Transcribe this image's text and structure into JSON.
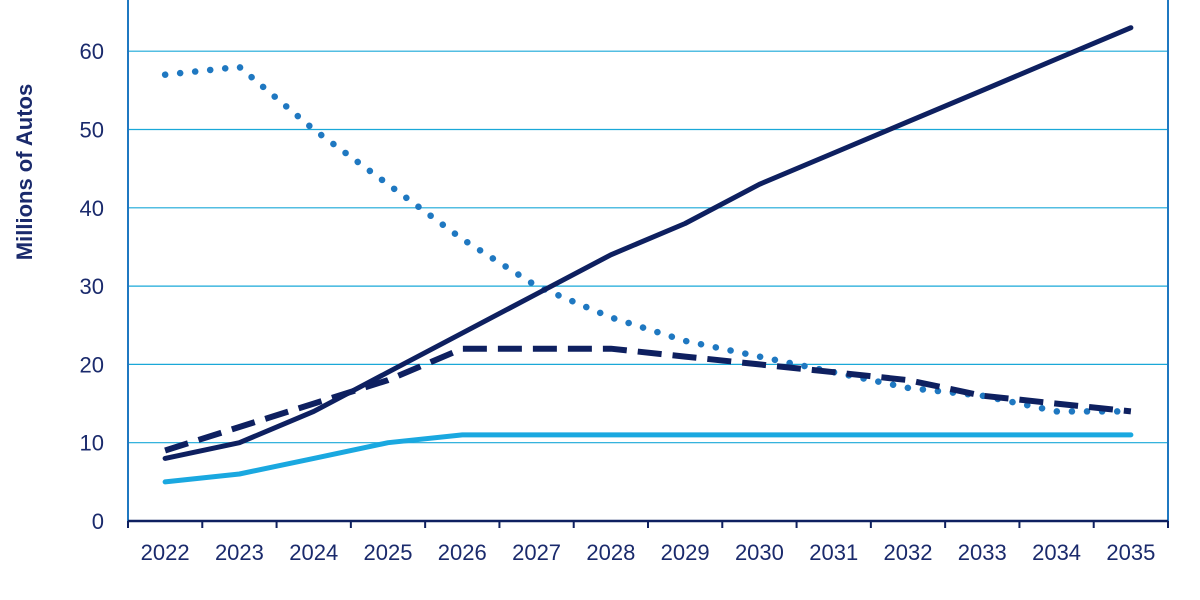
{
  "chart_data": {
    "type": "line",
    "title": "",
    "xlabel": "",
    "ylabel": "Millions of Autos",
    "ylim": [
      0,
      67
    ],
    "yticks": [
      0,
      10,
      20,
      30,
      40,
      50,
      60
    ],
    "grid": true,
    "categories": [
      "2022",
      "2023",
      "2024",
      "2025",
      "2026",
      "2027",
      "2028",
      "2029",
      "2030",
      "2031",
      "2032",
      "2033",
      "2034",
      "2035"
    ],
    "series": [
      {
        "name": "dotted-series",
        "style": "dotted",
        "color": "#1f78c1",
        "values": [
          57,
          58,
          50,
          43,
          36,
          30,
          26,
          23,
          21,
          19,
          17,
          16,
          14,
          14
        ]
      },
      {
        "name": "solid-navy-series",
        "style": "solid",
        "color": "#0e2060",
        "values": [
          8,
          10,
          14,
          19,
          24,
          29,
          34,
          38,
          43,
          47,
          51,
          55,
          59,
          63
        ]
      },
      {
        "name": "dashed-series",
        "style": "dashed",
        "color": "#0e2060",
        "values": [
          9,
          12,
          15,
          18,
          22,
          22,
          22,
          21,
          20,
          19,
          18,
          16,
          15,
          14
        ]
      },
      {
        "name": "light-blue-series",
        "style": "solid",
        "color": "#1aa8e0",
        "values": [
          5,
          6,
          8,
          10,
          11,
          11,
          11,
          11,
          11,
          11,
          11,
          11,
          11,
          11
        ]
      }
    ],
    "colors": {
      "gridline": "#1aa8d8",
      "frame": "#1f78c1",
      "axis": "#0e2060",
      "text": "#1a2a6c"
    }
  }
}
